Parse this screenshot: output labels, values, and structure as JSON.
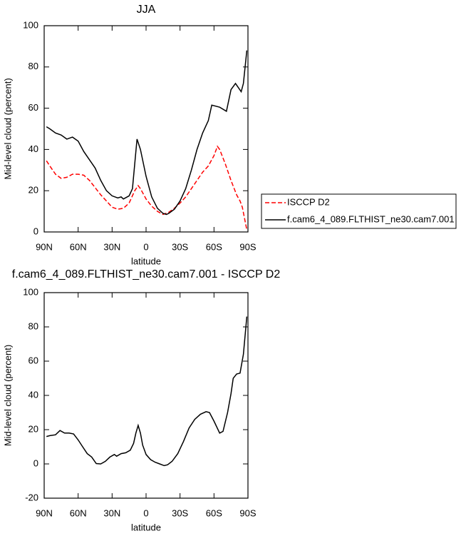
{
  "chart_data": [
    {
      "type": "line",
      "title": "JJA",
      "xlabel": "latitude",
      "ylabel": "Mid-level cloud (percent)",
      "xlim": [
        90,
        -90
      ],
      "xticks": [
        {
          "value": 90,
          "label": "90N"
        },
        {
          "value": 60,
          "label": "60N"
        },
        {
          "value": 30,
          "label": "30N"
        },
        0,
        {
          "value": -30,
          "label": "30S"
        },
        {
          "value": -60,
          "label": "60S"
        },
        {
          "value": -90,
          "label": "90S"
        }
      ],
      "ylim": [
        0,
        100
      ],
      "yticks": [
        0,
        20,
        40,
        60,
        80,
        100
      ],
      "legend": "right",
      "series": [
        {
          "name": "ISCCP D2",
          "color": "#ff0000",
          "style": "dashed",
          "x": [
            88,
            85,
            80,
            75,
            70,
            65,
            60,
            55,
            50,
            45,
            40,
            35,
            30,
            25,
            20,
            15,
            10,
            7,
            5,
            0,
            -5,
            -10,
            -15,
            -20,
            -25,
            -30,
            -35,
            -40,
            -45,
            -50,
            -55,
            -60,
            -63,
            -65,
            -70,
            -75,
            -80,
            -83,
            -85,
            -89
          ],
          "values": [
            34.5,
            32,
            28,
            26,
            26.5,
            28,
            28,
            27.5,
            25,
            21.5,
            18,
            15,
            12,
            11,
            11.5,
            14,
            20,
            22.5,
            21,
            16,
            12.5,
            10,
            8.5,
            9.5,
            11.5,
            14,
            17,
            21,
            25,
            29,
            32,
            37,
            41.5,
            40,
            33,
            25,
            18,
            15,
            12,
            1
          ]
        },
        {
          "name": "f.cam6_4_089.FLTHIST_ne30.cam7.001",
          "color": "#000000",
          "style": "solid",
          "x": [
            88,
            85,
            80,
            75,
            70,
            65,
            60,
            55,
            50,
            45,
            40,
            35,
            30,
            25,
            22,
            20,
            15,
            12,
            10,
            8,
            5,
            0,
            -5,
            -10,
            -15,
            -18,
            -20,
            -25,
            -30,
            -35,
            -40,
            -45,
            -50,
            -55,
            -58,
            -65,
            -71,
            -75,
            -79,
            -84,
            -86,
            -89
          ],
          "values": [
            51,
            50,
            48,
            47,
            45,
            46,
            44,
            39,
            35,
            31,
            25,
            20,
            17.5,
            16.5,
            17,
            16,
            17.5,
            21,
            33,
            45,
            40,
            27,
            17,
            11.5,
            9,
            8.5,
            9,
            11,
            15,
            21,
            30,
            40,
            48,
            54,
            61.5,
            60.5,
            58.5,
            69,
            72,
            68,
            72,
            88
          ]
        }
      ]
    },
    {
      "type": "line",
      "title": "f.cam6_4_089.FLTHIST_ne30.cam7.001 - ISCCP D2",
      "xlabel": "latitude",
      "ylabel": "Mid-level cloud (percent)",
      "xlim": [
        90,
        -90
      ],
      "xticks": [
        {
          "value": 90,
          "label": "90N"
        },
        {
          "value": 60,
          "label": "60N"
        },
        {
          "value": 30,
          "label": "30N"
        },
        0,
        {
          "value": -30,
          "label": "30S"
        },
        {
          "value": -60,
          "label": "60S"
        },
        {
          "value": -90,
          "label": "90S"
        }
      ],
      "ylim": [
        -20,
        100
      ],
      "yticks": [
        -20,
        0,
        20,
        40,
        60,
        80,
        100
      ],
      "series": [
        {
          "color": "#000000",
          "style": "solid",
          "x": [
            88,
            85,
            80,
            76,
            72,
            68,
            64,
            60,
            56,
            52,
            48,
            44,
            40,
            36,
            32,
            28,
            26,
            22,
            18,
            14,
            11,
            9,
            7,
            5,
            3,
            0,
            -4,
            -8,
            -12,
            -16,
            -19,
            -23,
            -28,
            -33,
            -38,
            -43,
            -48,
            -53,
            -56,
            -60,
            -65,
            -68,
            -72,
            -75,
            -77,
            -80,
            -83,
            -86,
            -89
          ],
          "values": [
            16,
            16.5,
            17,
            19.5,
            18,
            18,
            17.5,
            14,
            10,
            6,
            4,
            0.2,
            0,
            1.5,
            4,
            5.5,
            4.5,
            6,
            6.5,
            8,
            12,
            18,
            22.5,
            18,
            11,
            5.5,
            2.5,
            1,
            0,
            -1,
            -0.5,
            1.5,
            6,
            13,
            21,
            26,
            29,
            30.5,
            30,
            25,
            18,
            19,
            30,
            41,
            50,
            52.5,
            53,
            64,
            86
          ]
        }
      ]
    }
  ]
}
